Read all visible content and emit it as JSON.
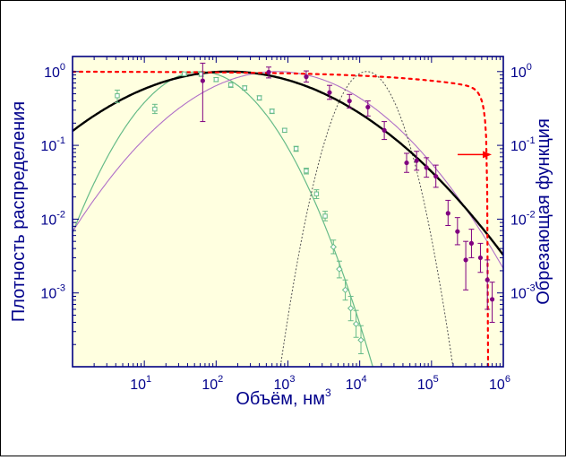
{
  "chart_data": {
    "type": "scatter",
    "title": "",
    "xlabel": "Объём,  нм",
    "xlabel_superscript": "3",
    "ylabel_left": "Плотность распределения",
    "ylabel_right": "Обрезающая функция",
    "x_scale": "log",
    "y_scale": "log",
    "xlim": [
      1,
      1000000
    ],
    "ylim": [
      0.0001,
      1.6
    ],
    "y2lim": [
      0.0001,
      1.6
    ],
    "x_ticks": [
      {
        "value": 10,
        "base": "10",
        "exp": "1"
      },
      {
        "value": 100,
        "base": "10",
        "exp": "2"
      },
      {
        "value": 1000,
        "base": "10",
        "exp": "3"
      },
      {
        "value": 10000,
        "base": "10",
        "exp": "4"
      },
      {
        "value": 100000,
        "base": "10",
        "exp": "5"
      },
      {
        "value": 1000000,
        "base": "10",
        "exp": "6"
      }
    ],
    "y_ticks": [
      {
        "value": 1,
        "base": "10",
        "exp": "0"
      },
      {
        "value": 0.1,
        "base": "10",
        "exp": "-1"
      },
      {
        "value": 0.01,
        "base": "10",
        "exp": "-2"
      },
      {
        "value": 0.001,
        "base": "10",
        "exp": "-3"
      }
    ],
    "colors": {
      "plot_bg": "#ffffe0",
      "axis": "#000080",
      "label": "#00008b",
      "green": "#66bb88",
      "purple": "#800080",
      "purple_line": "#b070c8",
      "black": "#000000",
      "red": "#ff0000",
      "gray": "#555555"
    },
    "green_points": [
      {
        "x": 4.2,
        "y": 0.47,
        "lo": 0.38,
        "hi": 0.56,
        "marker": "square"
      },
      {
        "x": 14,
        "y": 0.31,
        "lo": 0.27,
        "hi": 0.36,
        "marker": "square"
      },
      {
        "x": 36,
        "y": 0.93,
        "lo": 0.88,
        "hi": 0.98,
        "marker": "square"
      },
      {
        "x": 62,
        "y": 0.92,
        "lo": 0.86,
        "hi": 0.98,
        "marker": "square"
      },
      {
        "x": 100,
        "y": 0.78,
        "lo": 0.73,
        "hi": 0.83,
        "marker": "square"
      },
      {
        "x": 160,
        "y": 0.66,
        "lo": 0.61,
        "hi": 0.71,
        "marker": "square"
      },
      {
        "x": 250,
        "y": 0.6,
        "lo": 0.56,
        "hi": 0.64,
        "marker": "square"
      },
      {
        "x": 400,
        "y": 0.44,
        "lo": 0.41,
        "hi": 0.47,
        "marker": "square"
      },
      {
        "x": 600,
        "y": 0.29,
        "lo": 0.27,
        "hi": 0.31,
        "marker": "square"
      },
      {
        "x": 900,
        "y": 0.16,
        "lo": 0.15,
        "hi": 0.17,
        "marker": "square"
      },
      {
        "x": 1300,
        "y": 0.09,
        "lo": 0.083,
        "hi": 0.097,
        "marker": "square"
      },
      {
        "x": 1800,
        "y": 0.045,
        "lo": 0.041,
        "hi": 0.049,
        "marker": "square"
      },
      {
        "x": 2500,
        "y": 0.022,
        "lo": 0.019,
        "hi": 0.025,
        "marker": "square"
      },
      {
        "x": 3300,
        "y": 0.011,
        "lo": 0.0095,
        "hi": 0.0128,
        "marker": "square"
      },
      {
        "x": 4300,
        "y": 0.0042,
        "lo": 0.0034,
        "hi": 0.0052,
        "marker": "diamond"
      },
      {
        "x": 5200,
        "y": 0.0021,
        "lo": 0.0016,
        "hi": 0.0027,
        "marker": "diamond"
      },
      {
        "x": 6300,
        "y": 0.0011,
        "lo": 0.0008,
        "hi": 0.0015,
        "marker": "diamond"
      },
      {
        "x": 7500,
        "y": 0.00062,
        "lo": 0.00042,
        "hi": 0.0009,
        "marker": "diamond"
      },
      {
        "x": 8900,
        "y": 0.00038,
        "lo": 0.00025,
        "hi": 0.00058,
        "marker": "diamond"
      },
      {
        "x": 10400,
        "y": 0.00023,
        "lo": 0.00015,
        "hi": 0.00036,
        "marker": "diamond"
      }
    ],
    "purple_points": [
      {
        "x": 65,
        "y": 0.75,
        "lo": 0.21,
        "hi": 1.3
      },
      {
        "x": 540,
        "y": 0.98,
        "lo": 0.82,
        "hi": 1.15
      },
      {
        "x": 1800,
        "y": 0.85,
        "lo": 0.72,
        "hi": 1.02
      },
      {
        "x": 3800,
        "y": 0.52,
        "lo": 0.42,
        "hi": 0.65
      },
      {
        "x": 7200,
        "y": 0.4,
        "lo": 0.32,
        "hi": 0.49
      },
      {
        "x": 13000,
        "y": 0.33,
        "lo": 0.25,
        "hi": 0.4
      },
      {
        "x": 22000,
        "y": 0.16,
        "lo": 0.12,
        "hi": 0.21
      },
      {
        "x": 45000,
        "y": 0.058,
        "lo": 0.043,
        "hi": 0.078
      },
      {
        "x": 62000,
        "y": 0.062,
        "lo": 0.046,
        "hi": 0.083
      },
      {
        "x": 85000,
        "y": 0.05,
        "lo": 0.037,
        "hi": 0.068
      },
      {
        "x": 115000,
        "y": 0.038,
        "lo": 0.027,
        "hi": 0.054
      },
      {
        "x": 170000,
        "y": 0.012,
        "lo": 0.0082,
        "hi": 0.018
      },
      {
        "x": 230000,
        "y": 0.0068,
        "lo": 0.0045,
        "hi": 0.0105
      },
      {
        "x": 300000,
        "y": 0.0028,
        "lo": 0.0011,
        "hi": 0.005
      },
      {
        "x": 360000,
        "y": 0.0047,
        "lo": 0.003,
        "hi": 0.0073
      },
      {
        "x": 480000,
        "y": 0.003,
        "lo": 0.0019,
        "hi": 0.0047
      },
      {
        "x": 600000,
        "y": 0.0015,
        "lo": 0.0006,
        "hi": 0.0028
      },
      {
        "x": 700000,
        "y": 0.00082,
        "lo": 0.0004,
        "hi": 0.0014
      }
    ],
    "black_curve": {
      "peak_x": 150,
      "sigma_decades": 1.13
    },
    "green_curve": {
      "peak_x": 60,
      "sigma_decades": 0.56
    },
    "purple_curve": {
      "peak_x": 700,
      "sigma_decades": 0.9
    },
    "gray_curve": {
      "peak_x": 12500,
      "sigma_decades": 0.28
    },
    "red_cutoff": {
      "plateau": 1.0,
      "scale_x": 600000,
      "power": 0.25
    }
  }
}
